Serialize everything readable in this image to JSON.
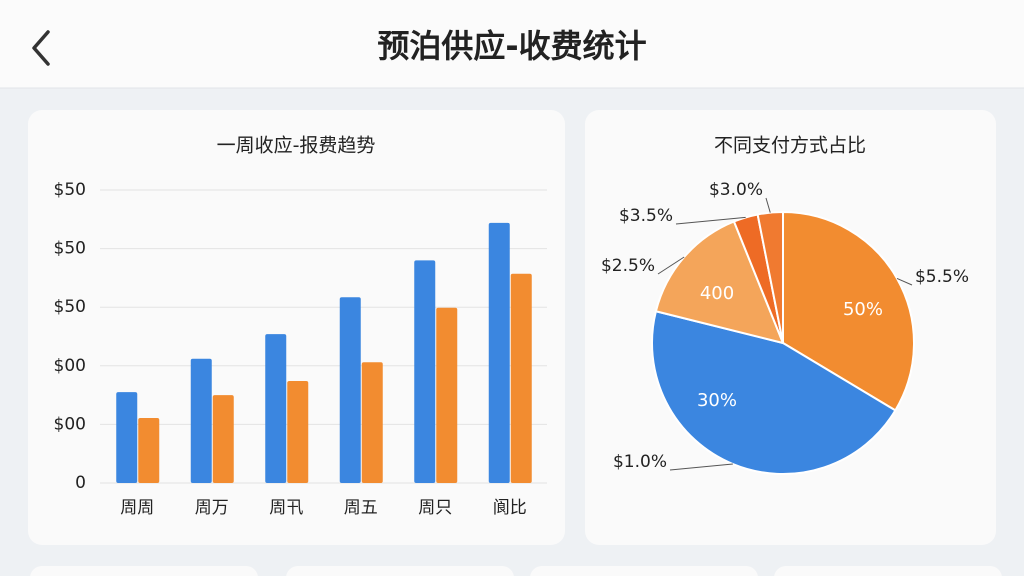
{
  "header": {
    "title": "预泊供应-收费统计"
  },
  "chart_data": [
    {
      "type": "bar",
      "title": "一周收应-报费趋势",
      "categories": [
        "周周",
        "周万",
        "周卂",
        "周五",
        "周只",
        "阆比"
      ],
      "series": [
        {
          "color": "#3b86e0",
          "values": [
            155,
            212,
            254,
            317,
            380,
            444
          ]
        },
        {
          "color": "#f28c30",
          "values": [
            111,
            150,
            174,
            206,
            299,
            357
          ]
        }
      ],
      "ylim": [
        0,
        500
      ],
      "yticks": [
        0,
        {
          "value": 100,
          "label": "$00"
        },
        {
          "value": 200,
          "label": "$00"
        },
        {
          "value": 300,
          "label": "$50"
        },
        {
          "value": 400,
          "label": "$50"
        },
        {
          "value": 500,
          "label": "$50"
        }
      ],
      "grid": true
    },
    {
      "type": "pie",
      "title": "不同支付方式占比",
      "values": [
        33.6,
        45.3,
        15,
        3,
        3.1
      ],
      "colors": [
        "#f28c30",
        "#3b86e0",
        "#f4a55a",
        "#ee6b25",
        "#f07a30"
      ],
      "inner_labels": [
        "50%",
        "30%",
        "400",
        null,
        null
      ],
      "outer_labels": [
        "$5.5%",
        "$1.0%",
        "$2.5%",
        "$3.5%",
        "$3.0%"
      ]
    }
  ]
}
